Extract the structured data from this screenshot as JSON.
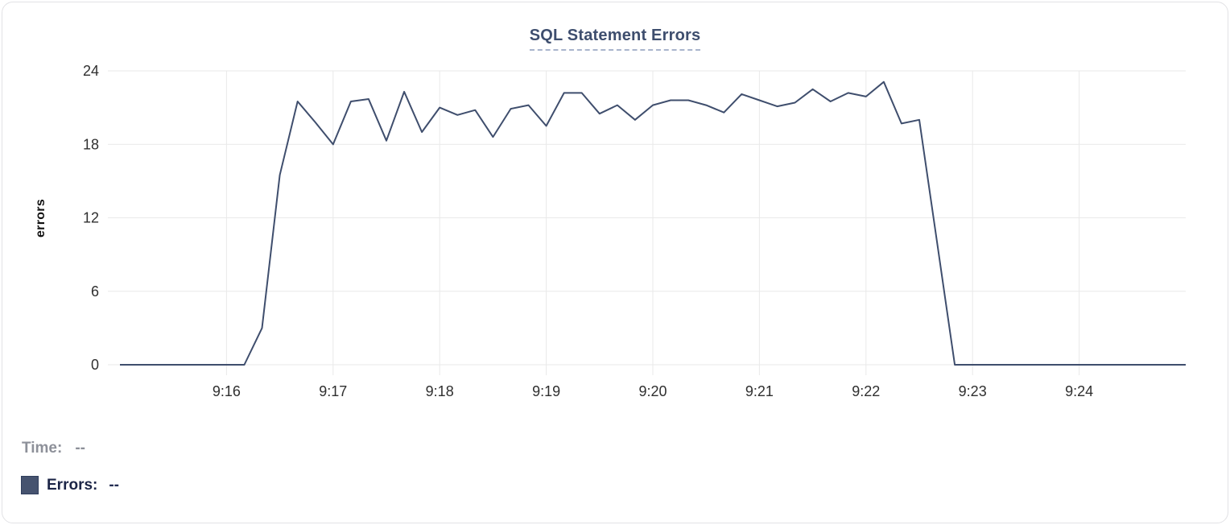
{
  "chart_data": {
    "type": "line",
    "title": "SQL Statement Errors",
    "xlabel": "",
    "ylabel": "errors",
    "x_axis_ticks": [
      "9:16",
      "9:17",
      "9:18",
      "9:19",
      "9:20",
      "9:21",
      "9:22",
      "9:23",
      "9:24"
    ],
    "y_axis_ticks": [
      0,
      6,
      12,
      18,
      24
    ],
    "xlim": [
      "9:15:00",
      "9:25:00"
    ],
    "ylim": [
      0,
      24
    ],
    "grid": true,
    "line_color": "#3f4e6d",
    "x": [
      "9:15:00",
      "9:15:10",
      "9:15:20",
      "9:15:30",
      "9:15:40",
      "9:15:50",
      "9:16:00",
      "9:16:10",
      "9:16:20",
      "9:16:30",
      "9:16:40",
      "9:16:50",
      "9:17:00",
      "9:17:10",
      "9:17:20",
      "9:17:30",
      "9:17:40",
      "9:17:50",
      "9:18:00",
      "9:18:10",
      "9:18:20",
      "9:18:30",
      "9:18:40",
      "9:18:50",
      "9:19:00",
      "9:19:10",
      "9:19:20",
      "9:19:30",
      "9:19:40",
      "9:19:50",
      "9:20:00",
      "9:20:10",
      "9:20:20",
      "9:20:30",
      "9:20:40",
      "9:20:50",
      "9:21:00",
      "9:21:10",
      "9:21:20",
      "9:21:30",
      "9:21:40",
      "9:21:50",
      "9:22:00",
      "9:22:10",
      "9:22:20",
      "9:22:30",
      "9:22:40",
      "9:22:50",
      "9:23:00",
      "9:23:10",
      "9:23:20",
      "9:23:30",
      "9:23:40",
      "9:23:50",
      "9:24:00",
      "9:24:10",
      "9:24:20",
      "9:24:30",
      "9:24:40",
      "9:24:50",
      "9:25:00"
    ],
    "y": [
      0,
      0,
      0,
      0,
      0,
      0,
      0,
      0,
      3,
      15.5,
      21.5,
      19.8,
      18,
      21.5,
      21.7,
      18.3,
      22.3,
      19,
      21,
      20.4,
      20.8,
      18.6,
      20.9,
      21.2,
      19.5,
      22.2,
      22.2,
      20.5,
      21.2,
      20,
      21.2,
      21.6,
      21.6,
      21.2,
      20.6,
      22.1,
      21.6,
      21.1,
      21.4,
      22.5,
      21.5,
      22.2,
      21.9,
      23.1,
      19.7,
      20,
      10,
      0,
      0,
      0,
      0,
      0,
      0,
      0,
      0,
      0,
      0,
      0,
      0,
      0,
      0
    ]
  },
  "readout": {
    "time_label": "Time:",
    "time_value": "--",
    "errors_label": "Errors:",
    "errors_value": "--",
    "swatch_color": "#46536f"
  },
  "colors": {
    "title": "#3e4e6e",
    "title_underline": "#a9b4cc",
    "gridline": "#e9e9e9",
    "tick_label": "#2f2f2f",
    "time_readout": "#8d9099",
    "errors_readout": "#1c2547"
  }
}
